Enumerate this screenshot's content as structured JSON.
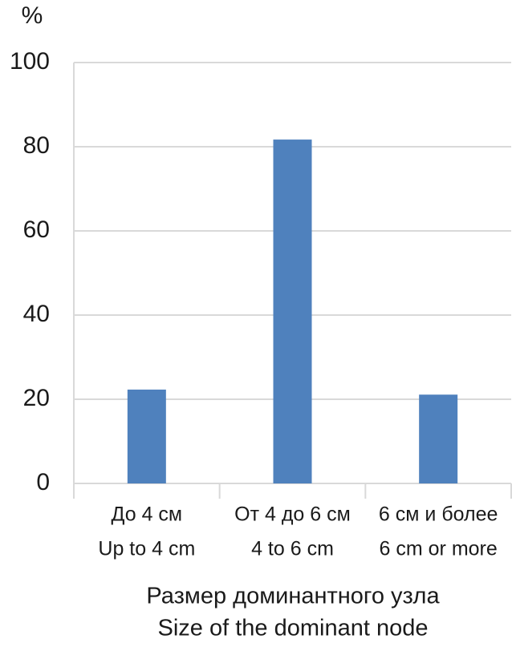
{
  "chart_data": {
    "type": "bar",
    "y_label": "%",
    "x_label": [
      "Размер доминантного узла",
      "Size of the dominant node"
    ],
    "categories": [
      [
        "До 4 см",
        "Up to 4 cm"
      ],
      [
        "От 4 до 6 см",
        "4 to 6 cm"
      ],
      [
        "6 см и более",
        "6 cm or more"
      ]
    ],
    "values": [
      22.3,
      81.7,
      21.1
    ],
    "color": "#4f81bd",
    "ylim": [
      0,
      100
    ],
    "yticks": [
      0,
      20,
      40,
      60,
      80,
      100
    ],
    "grid": true
  }
}
